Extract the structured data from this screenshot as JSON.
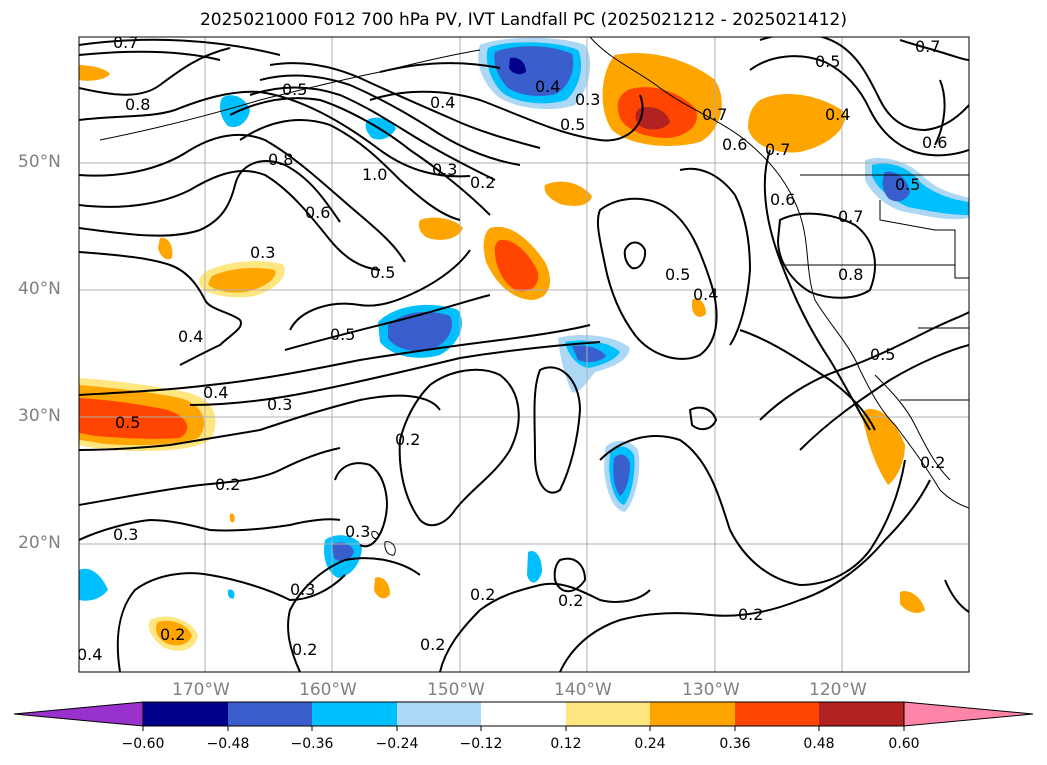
{
  "title": "2025021000 F012 700 hPa PV, IVT Landfall PC (2025021212 - 2025021412)",
  "lat_labels": [
    "50°N",
    "40°N",
    "30°N",
    "20°N"
  ],
  "lon_labels": [
    "170°W",
    "160°W",
    "150°W",
    "140°W",
    "130°W",
    "120°W"
  ],
  "colorbar": {
    "ticks": [
      "−0.60",
      "−0.48",
      "−0.36",
      "−0.24",
      "−0.12",
      "0.12",
      "0.24",
      "0.36",
      "0.48",
      "0.60"
    ],
    "colors": [
      "#9932cc",
      "#00008b",
      "#3a5fcd",
      "#00bfff",
      "#add8f5",
      "#ffffff",
      "#ffe680",
      "#ffa500",
      "#ff4500",
      "#b22222",
      "#ff85a8"
    ]
  },
  "contour_labels": [
    "0.7",
    "0.8",
    "0.6",
    "0.4",
    "0.3",
    "0.5",
    "0.5",
    "0.8",
    "0.6",
    "1.0",
    "0.3",
    "0.2",
    "0.3",
    "0.5",
    "0.7",
    "0.6",
    "0.4",
    "0.7",
    "0.6",
    "0.6",
    "0.5",
    "0.7",
    "0.8",
    "0.5",
    "0.3",
    "0.5",
    "0.4",
    "0.4",
    "0.3",
    "0.5",
    "0.2",
    "0.2",
    "0.3",
    "0.3",
    "0.3",
    "0.2",
    "0.2",
    "0.2",
    "0.2",
    "0.2",
    "0.4",
    "0.2",
    "0.5"
  ]
}
